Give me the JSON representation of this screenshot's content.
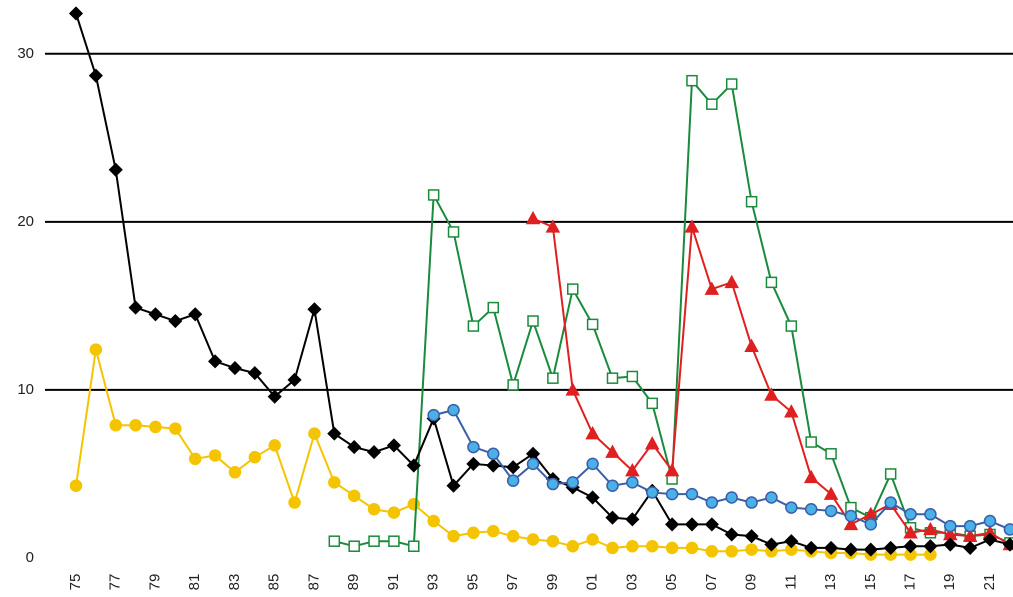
{
  "chart_data": {
    "type": "line",
    "categories": [
      "75",
      null,
      "77",
      null,
      "79",
      null,
      "81",
      null,
      "83",
      null,
      "85",
      null,
      "87",
      null,
      "89",
      null,
      "91",
      null,
      "93",
      null,
      "95",
      null,
      "97",
      null,
      "99",
      null,
      "01",
      null,
      "03",
      null,
      "05",
      null,
      "07",
      null,
      "09",
      null,
      "11",
      null,
      "13",
      null,
      "15",
      null,
      "17",
      null,
      "19",
      null,
      "21",
      null
    ],
    "ylim": [
      0,
      33.2
    ],
    "yticks": [
      0,
      10,
      20,
      30
    ],
    "grid": true,
    "series": [
      {
        "color": "#f5c400",
        "marker": "circle",
        "marker_fill": "#f5c400",
        "values": [
          4.3,
          12.4,
          7.9,
          7.9,
          7.8,
          7.7,
          5.9,
          6.1,
          5.1,
          6.0,
          6.7,
          3.3,
          7.4,
          4.5,
          3.7,
          2.9,
          2.7,
          3.2,
          2.2,
          1.3,
          1.5,
          1.6,
          1.3,
          1.1,
          1.0,
          0.7,
          1.1,
          0.6,
          0.7,
          0.7,
          0.6,
          0.6,
          0.4,
          0.4,
          0.5,
          0.4,
          0.5,
          0.4,
          0.3,
          0.3,
          0.2,
          0.2,
          0.2,
          0.2,
          null,
          null,
          null,
          null
        ]
      },
      {
        "color": "#1a8a3c",
        "marker": "square",
        "marker_fill": "#ffffff",
        "values": [
          null,
          null,
          null,
          null,
          null,
          null,
          null,
          null,
          null,
          null,
          null,
          null,
          null,
          1.0,
          0.7,
          1.0,
          1.0,
          0.7,
          21.6,
          19.4,
          13.8,
          14.9,
          10.3,
          14.1,
          10.7,
          16.0,
          13.9,
          10.7,
          10.8,
          9.2,
          4.7,
          28.4,
          27.0,
          28.2,
          21.2,
          16.4,
          13.8,
          6.9,
          6.2,
          3.0,
          2.4,
          5.0,
          1.8,
          1.5,
          1.5,
          1.3,
          1.4,
          0.9
        ]
      },
      {
        "color": "#e02020",
        "marker": "triangle",
        "marker_fill": "#e02020",
        "values": [
          null,
          null,
          null,
          null,
          null,
          null,
          null,
          null,
          null,
          null,
          null,
          null,
          null,
          null,
          null,
          null,
          null,
          null,
          null,
          null,
          null,
          null,
          null,
          20.2,
          19.7,
          10.0,
          7.4,
          6.3,
          5.2,
          6.8,
          5.2,
          19.7,
          16.0,
          16.4,
          12.6,
          9.7,
          8.7,
          4.8,
          3.8,
          2.0,
          2.6,
          3.2,
          1.5,
          1.7,
          1.4,
          1.3,
          1.5,
          0.8
        ]
      },
      {
        "color": "#000000",
        "marker": "diamond",
        "marker_fill": "#000000",
        "values": [
          32.4,
          28.7,
          23.1,
          14.9,
          14.5,
          14.1,
          14.5,
          11.7,
          11.3,
          11.0,
          9.6,
          10.6,
          14.8,
          7.4,
          6.6,
          6.3,
          6.7,
          5.5,
          8.3,
          4.3,
          5.6,
          5.5,
          5.4,
          6.2,
          4.7,
          4.2,
          3.6,
          2.4,
          2.3,
          4.0,
          2.0,
          2.0,
          2.0,
          1.4,
          1.3,
          0.8,
          1.0,
          0.6,
          0.6,
          0.5,
          0.5,
          0.6,
          0.7,
          0.7,
          0.8,
          0.6,
          1.1,
          0.8
        ]
      },
      {
        "color": "#3a5fa8",
        "marker": "circle",
        "marker_fill": "#4ab0e8",
        "values": [
          null,
          null,
          null,
          null,
          null,
          null,
          null,
          null,
          null,
          null,
          null,
          null,
          null,
          null,
          null,
          null,
          null,
          null,
          8.5,
          8.8,
          6.6,
          6.2,
          4.6,
          5.6,
          4.4,
          4.5,
          5.6,
          4.3,
          4.5,
          3.9,
          3.8,
          3.8,
          3.3,
          3.6,
          3.3,
          3.6,
          3.0,
          2.9,
          2.8,
          2.5,
          2.0,
          3.3,
          2.6,
          2.6,
          1.9,
          1.9,
          2.2,
          1.7
        ]
      }
    ]
  }
}
